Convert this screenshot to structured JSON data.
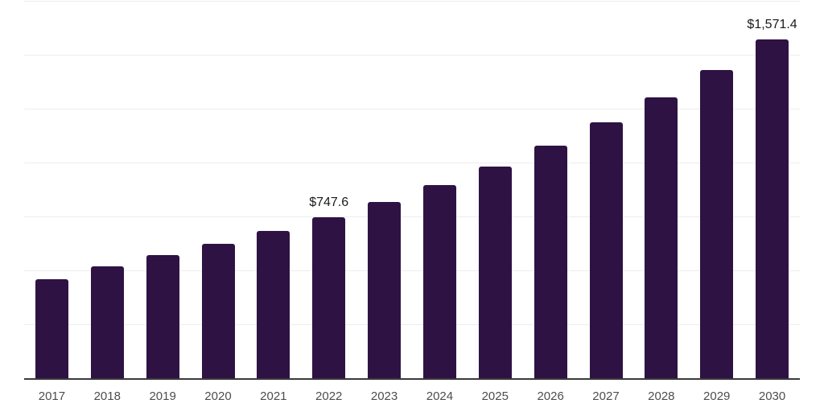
{
  "chart_data": {
    "type": "bar",
    "title": "",
    "xlabel": "",
    "ylabel": "",
    "categories": [
      "2017",
      "2018",
      "2019",
      "2020",
      "2021",
      "2022",
      "2023",
      "2024",
      "2025",
      "2026",
      "2027",
      "2028",
      "2029",
      "2030"
    ],
    "values": [
      459.0,
      517.3,
      572.0,
      625.0,
      683.4,
      747.6,
      818.3,
      895.2,
      982.9,
      1077.3,
      1186.2,
      1301.3,
      1427.7,
      1571.4
    ],
    "labeled_points": [
      {
        "category": "2022",
        "label": "$747.6"
      },
      {
        "category": "2030",
        "label": "$1,571.4"
      }
    ],
    "ylim": [
      0,
      1750
    ],
    "gridline_interval": 250,
    "grid": "horizontal-only",
    "legend": "none",
    "y_tick_labels": "none",
    "colors": {
      "bar": "#2e1244",
      "gridline": "#ededed",
      "axis_line": "#3a3a3a",
      "x_tick_text": "#4d4d4d",
      "value_label_text": "#1a1a1a",
      "background": "#ffffff"
    }
  }
}
